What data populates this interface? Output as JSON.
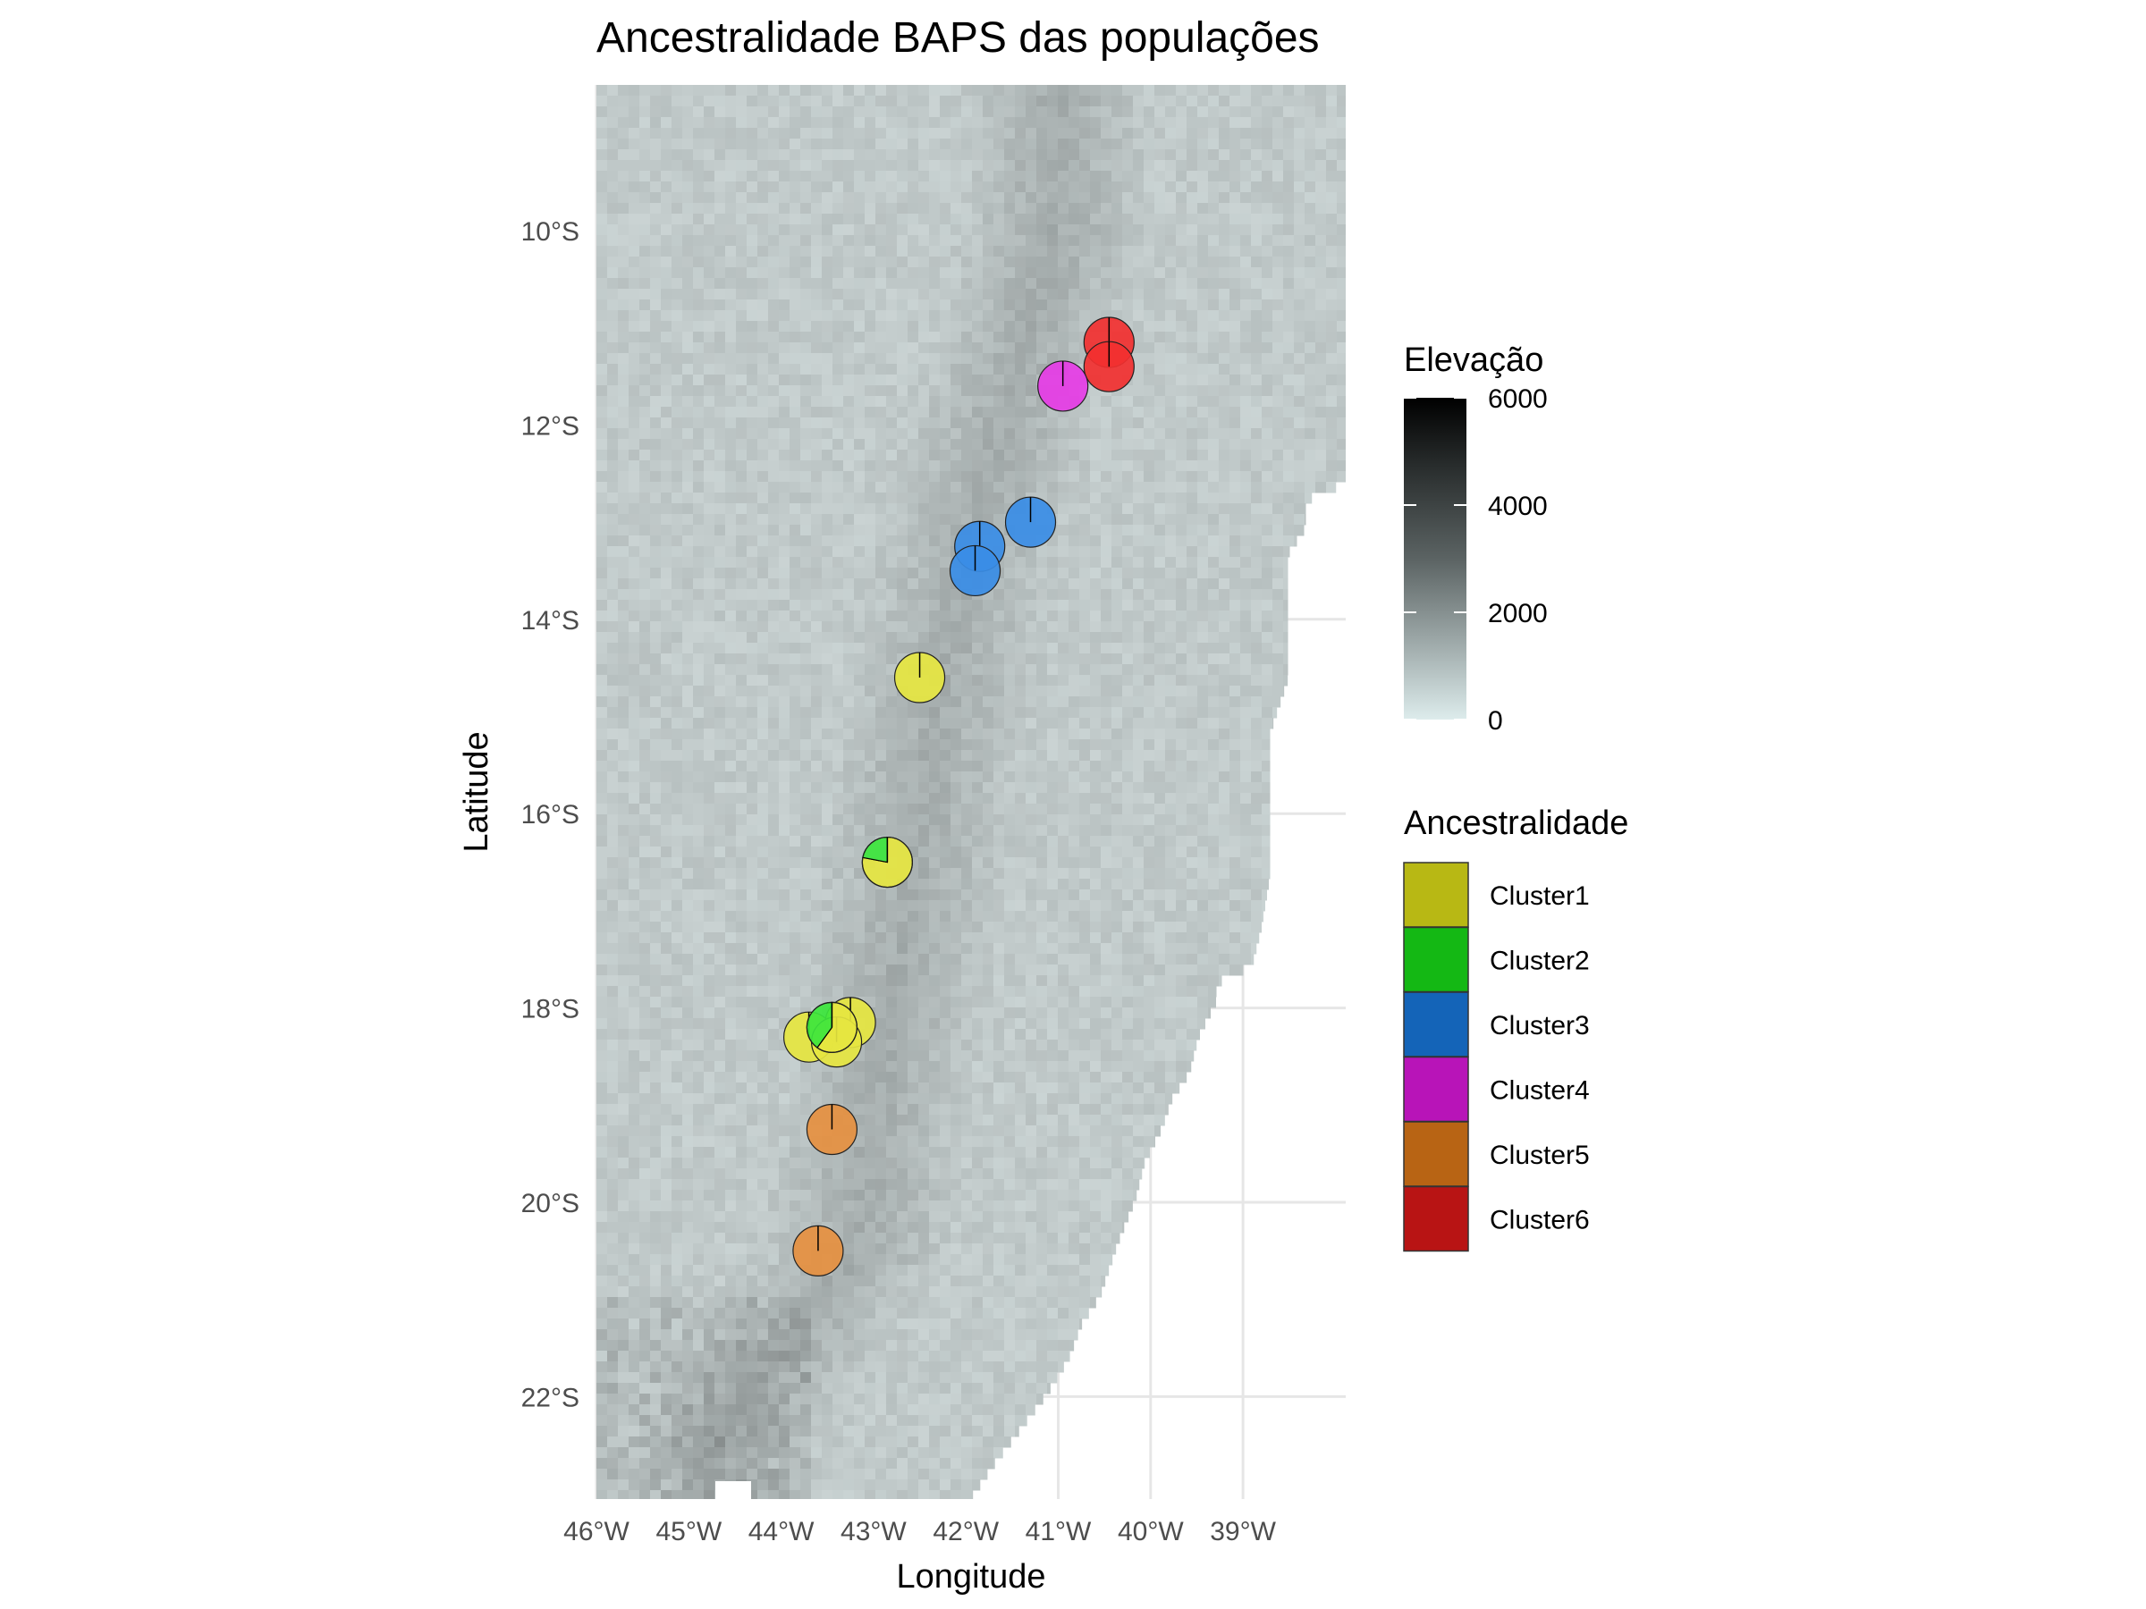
{
  "title": "Ancestralidade BAPS das populações",
  "xlabel": "Longitude",
  "ylabel": "Latitude",
  "colors": {
    "Cluster1": "#b8b814",
    "Cluster2": "#14b814",
    "Cluster3": "#1464b8",
    "Cluster4": "#b814b8",
    "Cluster5": "#b86414",
    "Cluster6": "#b81414"
  },
  "chart_data": {
    "type": "map-pie",
    "xlim": [
      -46,
      -38.5
    ],
    "ylim": [
      -23.2,
      -8.5
    ],
    "x_ticks": [
      {
        "value": -46,
        "label": "46°W"
      },
      {
        "value": -45,
        "label": "45°W"
      },
      {
        "value": -44,
        "label": "44°W"
      },
      {
        "value": -43,
        "label": "43°W"
      },
      {
        "value": -42,
        "label": "42°W"
      },
      {
        "value": -41,
        "label": "41°W"
      },
      {
        "value": -40,
        "label": "40°W"
      },
      {
        "value": -39,
        "label": "39°W"
      }
    ],
    "y_ticks": [
      {
        "value": -10,
        "label": "10°S"
      },
      {
        "value": -12,
        "label": "12°S"
      },
      {
        "value": -14,
        "label": "14°S"
      },
      {
        "value": -16,
        "label": "16°S"
      },
      {
        "value": -18,
        "label": "18°S"
      },
      {
        "value": -20,
        "label": "20°S"
      },
      {
        "value": -22,
        "label": "22°S"
      }
    ],
    "elevation_legend": {
      "title": "Elevação",
      "ticks": [
        {
          "value": 0,
          "label": "0"
        },
        {
          "value": 2000,
          "label": "2000"
        },
        {
          "value": 4000,
          "label": "4000"
        },
        {
          "value": 6000,
          "label": "6000"
        }
      ],
      "range": [
        0,
        6000
      ]
    },
    "ancestry_legend": {
      "title": "Ancestralidade",
      "entries": [
        "Cluster1",
        "Cluster2",
        "Cluster3",
        "Cluster4",
        "Cluster5",
        "Cluster6"
      ]
    },
    "populations": [
      {
        "lon": -40.45,
        "lat": -11.15,
        "props": {
          "Cluster6": 1.0
        }
      },
      {
        "lon": -40.45,
        "lat": -11.4,
        "props": {
          "Cluster6": 1.0
        }
      },
      {
        "lon": -40.95,
        "lat": -11.6,
        "props": {
          "Cluster4": 1.0
        }
      },
      {
        "lon": -41.3,
        "lat": -13.0,
        "props": {
          "Cluster3": 1.0
        }
      },
      {
        "lon": -41.85,
        "lat": -13.25,
        "props": {
          "Cluster3": 1.0
        }
      },
      {
        "lon": -41.9,
        "lat": -13.5,
        "props": {
          "Cluster3": 1.0
        }
      },
      {
        "lon": -42.5,
        "lat": -14.6,
        "props": {
          "Cluster1": 1.0
        }
      },
      {
        "lon": -42.85,
        "lat": -16.5,
        "props": {
          "Cluster1": 0.78,
          "Cluster2": 0.22
        }
      },
      {
        "lon": -43.7,
        "lat": -18.3,
        "props": {
          "Cluster1": 1.0
        }
      },
      {
        "lon": -43.25,
        "lat": -18.15,
        "props": {
          "Cluster1": 1.0
        }
      },
      {
        "lon": -43.4,
        "lat": -18.35,
        "props": {
          "Cluster1": 1.0
        }
      },
      {
        "lon": -43.45,
        "lat": -18.2,
        "props": {
          "Cluster1": 0.6,
          "Cluster2": 0.4
        }
      },
      {
        "lon": -43.45,
        "lat": -19.25,
        "props": {
          "Cluster5": 1.0
        }
      },
      {
        "lon": -43.6,
        "lat": -20.5,
        "props": {
          "Cluster5": 1.0
        }
      }
    ]
  }
}
